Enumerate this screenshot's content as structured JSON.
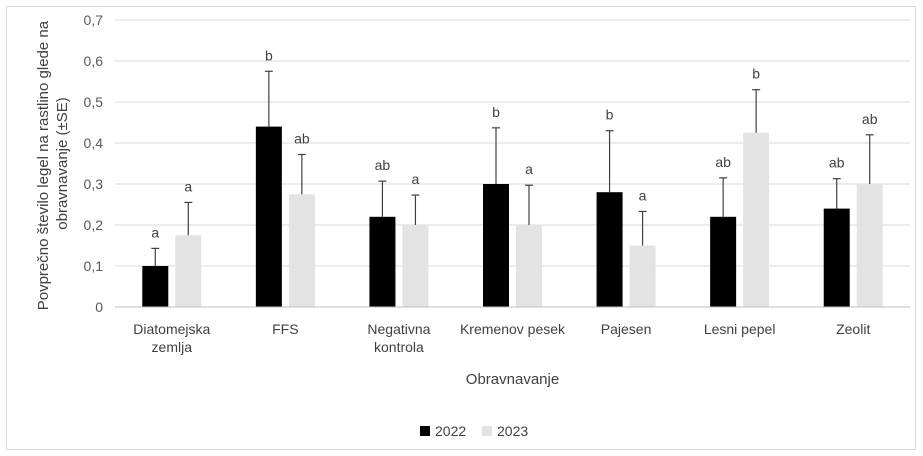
{
  "chart_data": {
    "type": "bar",
    "categories": [
      [
        "Diatomejska",
        "zemlja"
      ],
      [
        "FFS"
      ],
      [
        "Negativna",
        "kontrola"
      ],
      [
        "Kremenov pesek"
      ],
      [
        "Pajesen"
      ],
      [
        "Lesni pepel"
      ],
      [
        "Zeolit"
      ]
    ],
    "series": [
      {
        "name": "2022",
        "color": "#000000",
        "values": [
          0.1,
          0.44,
          0.22,
          0.3,
          0.28,
          0.22,
          0.24
        ],
        "error": [
          0.043,
          0.135,
          0.087,
          0.137,
          0.15,
          0.095,
          0.073
        ],
        "letters": [
          "a",
          "b",
          "ab",
          "b",
          "b",
          "ab",
          "ab"
        ]
      },
      {
        "name": "2023",
        "color": "#e3e3e3",
        "values": [
          0.175,
          0.275,
          0.2,
          0.2,
          0.15,
          0.425,
          0.3
        ],
        "error": [
          0.08,
          0.097,
          0.073,
          0.097,
          0.083,
          0.105,
          0.12
        ],
        "letters": [
          "a",
          "ab",
          "a",
          "a",
          "a",
          "b",
          "ab"
        ]
      }
    ],
    "xlabel": "Obravnavanje",
    "ylabel_lines": [
      "Povprečno število legel na rastlino glede na",
      "obravnavanje (±SE)"
    ],
    "ylim": [
      0,
      0.7
    ],
    "yticks": [
      "0",
      "0,1",
      "0,2",
      "0,3",
      "0,4",
      "0,5",
      "0,6",
      "0,7"
    ],
    "grid": true,
    "legend_position": "bottom"
  }
}
